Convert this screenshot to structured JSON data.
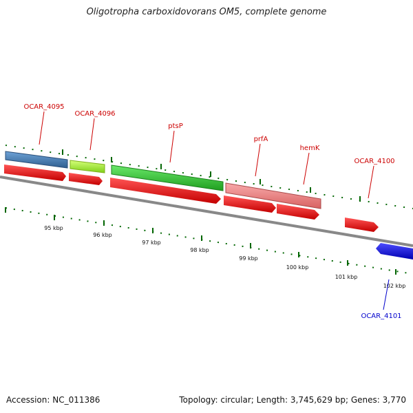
{
  "title": "Oligotropha carboxidovorans OM5, complete genome",
  "footer": {
    "accession": "Accession: NC_011386",
    "summary": "Topology: circular; Length: 3,745,629 bp; Genes: 3,770"
  },
  "colors": {
    "cds": "#ff0000",
    "label_forward": "#cc0000",
    "label_reverse": "#0000cc",
    "backbone": "#888888",
    "tick": "#006600"
  },
  "scale": {
    "unit": "kbp",
    "ticks": [
      {
        "label": "95 kbp"
      },
      {
        "label": "96 kbp"
      },
      {
        "label": "97 kbp"
      },
      {
        "label": "98 kbp"
      },
      {
        "label": "99 kbp"
      },
      {
        "label": "100 kbp"
      },
      {
        "label": "101 kbp"
      },
      {
        "label": "102 kbp"
      }
    ]
  },
  "genes": [
    {
      "name": "OCAR_4095",
      "strand": "+",
      "color": "#4682b4"
    },
    {
      "name": "OCAR_4096",
      "strand": "+",
      "color": "#adff2f"
    },
    {
      "name": "ptsP",
      "strand": "+",
      "color": "#32cd32"
    },
    {
      "name": "prfA",
      "strand": "+",
      "color": "#f08080"
    },
    {
      "name": "hemK",
      "strand": "+",
      "color": "#f08080"
    },
    {
      "name": "OCAR_4100",
      "strand": "+",
      "color": "#ff0000"
    },
    {
      "name": "OCAR_4101",
      "strand": "-",
      "color": "#0000ff"
    }
  ]
}
